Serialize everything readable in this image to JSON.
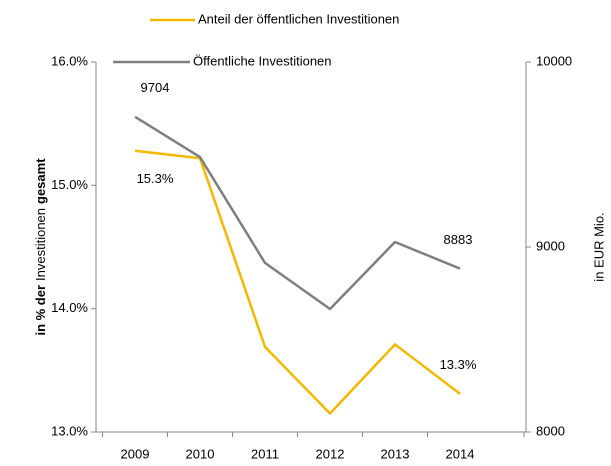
{
  "chart_data": {
    "type": "line",
    "categories": [
      "2009",
      "2010",
      "2011",
      "2012",
      "2013",
      "2014"
    ],
    "series": [
      {
        "name": "Anteil der öffentlichen Investitionen",
        "color": "#f5b800",
        "axis": "y",
        "values": [
          15.28,
          15.22,
          13.69,
          13.15,
          13.71,
          13.31
        ],
        "value_labels": [
          "15.3%",
          null,
          null,
          null,
          null,
          "13.3%"
        ]
      },
      {
        "name": "Öffentliche Investitionen",
        "color": "#7f7f7f",
        "axis": "y2",
        "values": [
          9704,
          9486,
          8914,
          8665,
          9027,
          8883
        ],
        "value_labels": [
          "9704",
          null,
          null,
          null,
          null,
          "8883"
        ]
      }
    ],
    "ylabel": [
      "in % der",
      "Investitionen",
      "gesamt"
    ],
    "y2label": "in EUR Mio.",
    "ylim": [
      13,
      16
    ],
    "yticks": [
      {
        "value": 13,
        "label": "13.0%"
      },
      {
        "value": 14,
        "label": "14.0%"
      },
      {
        "value": 15,
        "label": "15.0%"
      },
      {
        "value": 16,
        "label": "16.0%"
      }
    ],
    "y2lim": [
      8000,
      10000
    ],
    "y2ticks": [
      8000,
      9000,
      10000
    ],
    "legend": "top"
  }
}
